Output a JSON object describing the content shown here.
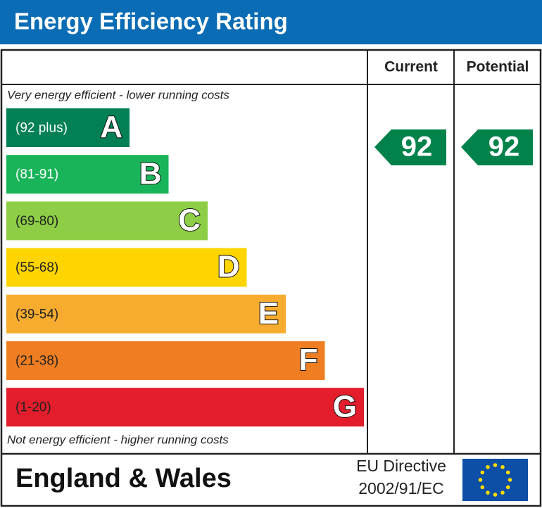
{
  "header": {
    "title": "Energy Efficiency Rating"
  },
  "columns": [
    "Current",
    "Potential"
  ],
  "top_note": "Very energy efficient - lower running costs",
  "bottom_note": "Not energy efficient - higher running costs",
  "bands": [
    {
      "range": "(92 plus)",
      "letter": "A",
      "color": "#008054",
      "text_color": "#ffffff"
    },
    {
      "range": "(81-91)",
      "letter": "B",
      "color": "#19b459",
      "text_color": "#ffffff"
    },
    {
      "range": "(69-80)",
      "letter": "C",
      "color": "#8dce46",
      "text_color": "#222222"
    },
    {
      "range": "(55-68)",
      "letter": "D",
      "color": "#ffd500",
      "text_color": "#222222"
    },
    {
      "range": "(39-54)",
      "letter": "E",
      "color": "#f7ac2f",
      "text_color": "#222222"
    },
    {
      "range": "(21-38)",
      "letter": "F",
      "color": "#ef7d22",
      "text_color": "#222222"
    },
    {
      "range": "(1-20)",
      "letter": "G",
      "color": "#e31d2b",
      "text_color": "#222222"
    }
  ],
  "current": 92,
  "potential": 92,
  "footer": {
    "region": "England & Wales",
    "directive": [
      "EU Directive",
      "2002/91/EC"
    ]
  }
}
